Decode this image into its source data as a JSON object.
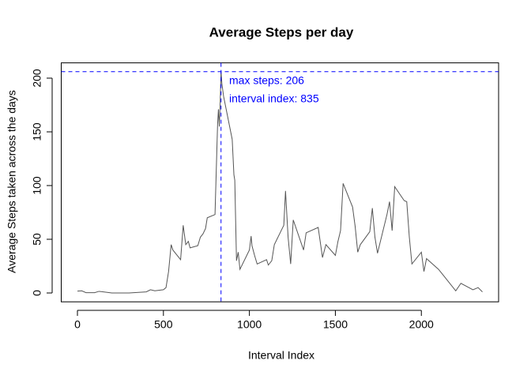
{
  "chart_data": {
    "type": "line",
    "title": "Average Steps per day",
    "xlabel": "Interval Index",
    "ylabel": "Average Steps taken across the days",
    "x": [
      0,
      25,
      50,
      100,
      125,
      200,
      300,
      400,
      425,
      450,
      500,
      515,
      530,
      545,
      555,
      600,
      615,
      630,
      645,
      655,
      700,
      715,
      730,
      745,
      755,
      800,
      815,
      820,
      825,
      830,
      835,
      840,
      850,
      900,
      910,
      915,
      925,
      935,
      945,
      1000,
      1010,
      1015,
      1030,
      1045,
      1100,
      1110,
      1130,
      1145,
      1200,
      1210,
      1225,
      1240,
      1255,
      1300,
      1315,
      1330,
      1400,
      1425,
      1445,
      1500,
      1515,
      1530,
      1545,
      1600,
      1615,
      1630,
      1645,
      1700,
      1715,
      1730,
      1745,
      1800,
      1815,
      1830,
      1845,
      1900,
      1915,
      1930,
      1945,
      2000,
      2015,
      2030,
      2100,
      2130,
      2200,
      2230,
      2300,
      2330,
      2355
    ],
    "series": [
      {
        "name": "Average Steps",
        "color": "#555555",
        "values": [
          1.7,
          2,
          0.3,
          0.3,
          1.5,
          0,
          0,
          1,
          3,
          2,
          3,
          5,
          20,
          45,
          40,
          31,
          63,
          45,
          48,
          42,
          44,
          52,
          55,
          60,
          70,
          73,
          157,
          171,
          155,
          177,
          206,
          195,
          183,
          143,
          110,
          105,
          30,
          38,
          22,
          40,
          53,
          44,
          35,
          27,
          31,
          26,
          30,
          45,
          63,
          95,
          52,
          27,
          68,
          47,
          40,
          56,
          61,
          33,
          45,
          35,
          48,
          58,
          102,
          80,
          62,
          38,
          45,
          57,
          79,
          52,
          37,
          73,
          85,
          58,
          99,
          86,
          85,
          52,
          27,
          38,
          20,
          32,
          22,
          16,
          2,
          9,
          3,
          5,
          1
        ]
      }
    ],
    "xlim": [
      -94.2,
      2449.2
    ],
    "ylim": [
      -8.24,
      214.24
    ],
    "xticks": [
      0,
      500,
      1000,
      1500,
      2000
    ],
    "yticks": [
      0,
      50,
      100,
      150,
      200
    ],
    "hline": 206,
    "vline": 835,
    "reference_color": "#0000ff",
    "annotations": [
      "max steps: 206",
      "interval index: 835"
    ]
  }
}
